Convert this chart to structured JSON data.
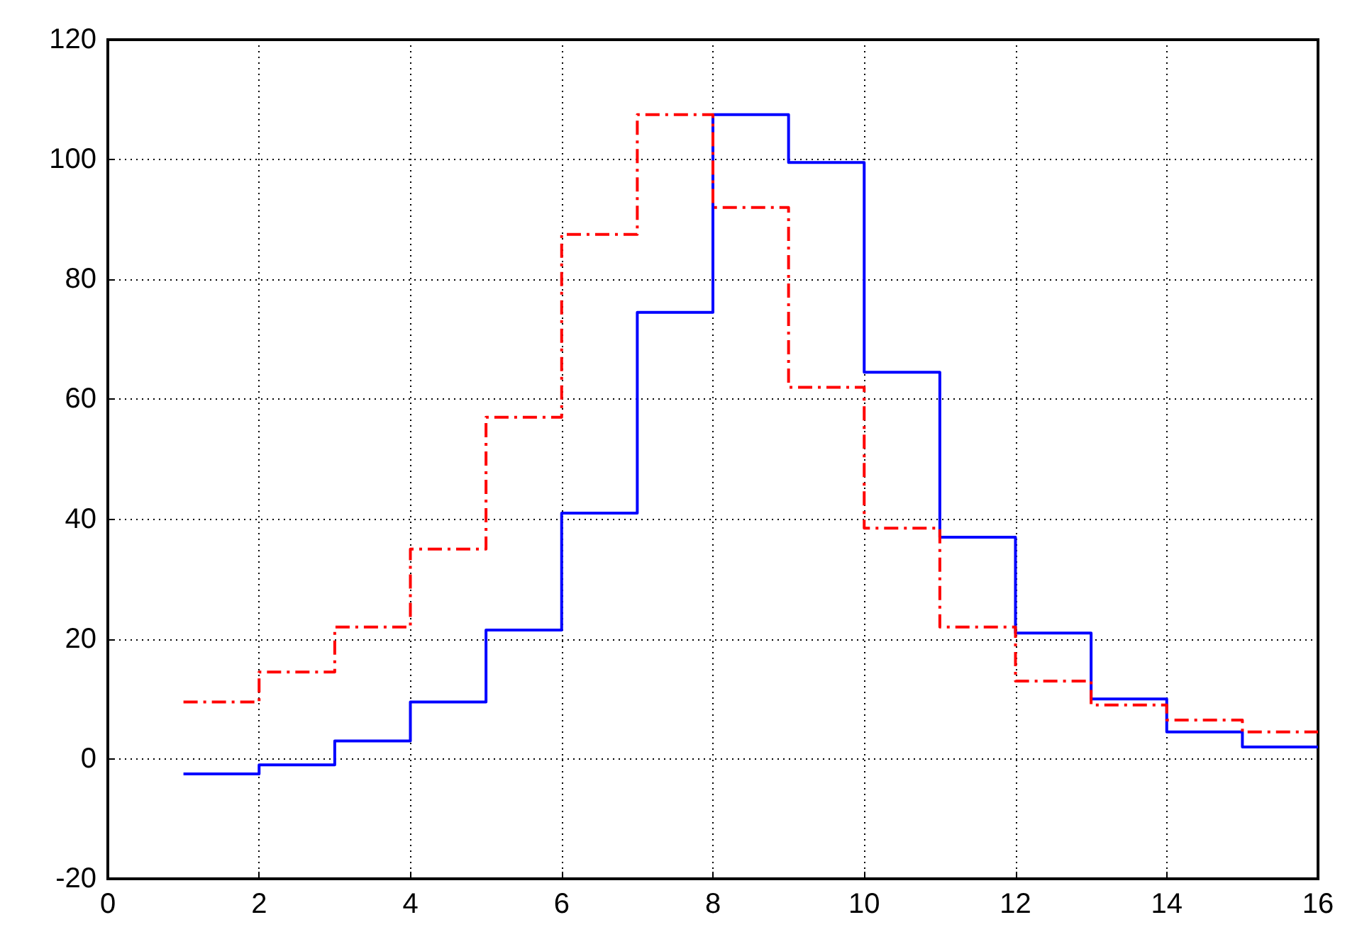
{
  "chart_data": {
    "type": "step",
    "xlim": [
      0,
      16
    ],
    "xticks": [
      0,
      2,
      4,
      6,
      8,
      10,
      12,
      14,
      16
    ],
    "ylim": [
      -20,
      120
    ],
    "yticks": [
      -20,
      0,
      20,
      40,
      60,
      80,
      100,
      120
    ],
    "grid": true,
    "marker": "none",
    "series": [
      {
        "color": "#0000ff",
        "line_style": "solid",
        "x": [
          1,
          2,
          3,
          4,
          5,
          6,
          7,
          8,
          9,
          10,
          11,
          12,
          13,
          14,
          15,
          16
        ],
        "values": [
          -2.5,
          -1,
          3,
          9.5,
          21.5,
          41,
          74.5,
          107.5,
          99.5,
          64.5,
          37,
          21,
          10,
          4.5,
          2,
          2
        ]
      },
      {
        "color": "#ff0000",
        "line_style": "dashed",
        "x": [
          1,
          2,
          3,
          4,
          5,
          6,
          7,
          8,
          9,
          10,
          11,
          12,
          13,
          14,
          15,
          16
        ],
        "values": [
          9.5,
          14.5,
          22,
          35,
          57,
          87.5,
          107.5,
          92,
          62,
          38.5,
          22,
          13,
          9,
          6.5,
          4.5,
          4.5
        ]
      }
    ]
  }
}
